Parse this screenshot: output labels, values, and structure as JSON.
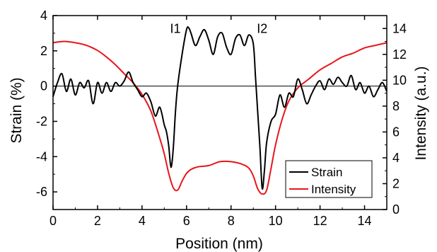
{
  "chart_data": {
    "type": "line",
    "title": "",
    "xlabel": "Position (nm)",
    "ylabel_left": "Strain (%)",
    "ylabel_right": "Intensity (a.u.)",
    "xlim": [
      0,
      15
    ],
    "ylim_left": [
      -7,
      4
    ],
    "ylim_right": [
      0,
      15
    ],
    "xticks": [
      "0",
      "2",
      "4",
      "6",
      "8",
      "10",
      "12",
      "14"
    ],
    "yticks_left": [
      "-6",
      "-4",
      "-2",
      "0",
      "2",
      "4"
    ],
    "yticks_right": [
      "0",
      "2",
      "4",
      "6",
      "8",
      "10",
      "12",
      "14"
    ],
    "zero_line": 0,
    "grid": false,
    "legend_position": "bottom-right",
    "annotations": [
      {
        "text": "I1",
        "x": 5.5,
        "y": 14.0
      },
      {
        "text": "I2",
        "x": 9.4,
        "y": 14.0
      }
    ],
    "series": [
      {
        "name": "Strain",
        "axis": "left",
        "color": "#000000",
        "x": [
          0.0,
          0.2,
          0.4,
          0.6,
          0.8,
          1.0,
          1.2,
          1.4,
          1.6,
          1.8,
          2.0,
          2.2,
          2.4,
          2.6,
          2.8,
          3.0,
          3.2,
          3.4,
          3.6,
          3.8,
          4.0,
          4.2,
          4.4,
          4.6,
          4.8,
          5.0,
          5.1,
          5.2,
          5.3,
          5.4,
          5.5,
          5.6,
          5.8,
          6.0,
          6.1,
          6.2,
          6.4,
          6.6,
          6.8,
          7.0,
          7.2,
          7.4,
          7.6,
          7.8,
          8.0,
          8.2,
          8.4,
          8.6,
          8.8,
          9.0,
          9.1,
          9.2,
          9.3,
          9.4,
          9.5,
          9.6,
          9.8,
          10.0,
          10.2,
          10.4,
          10.6,
          10.8,
          11.0,
          11.2,
          11.4,
          11.6,
          11.8,
          12.0,
          12.2,
          12.4,
          12.6,
          12.8,
          13.0,
          13.2,
          13.4,
          13.6,
          13.8,
          14.0,
          14.2,
          14.4,
          14.6,
          14.8,
          15.0
        ],
        "y": [
          -0.6,
          0.2,
          0.7,
          -0.3,
          0.4,
          -0.5,
          0.2,
          -0.1,
          0.3,
          -1.0,
          0.2,
          -0.4,
          0.2,
          -0.3,
          0.2,
          0.0,
          0.3,
          0.8,
          0.2,
          -0.2,
          -0.6,
          -0.4,
          -0.9,
          -1.7,
          -1.2,
          -2.2,
          -2.6,
          -3.4,
          -4.6,
          -3.6,
          -1.5,
          0.0,
          1.8,
          3.2,
          3.3,
          3.0,
          2.3,
          2.8,
          3.2,
          2.6,
          1.8,
          2.8,
          3.0,
          2.2,
          1.8,
          2.7,
          2.9,
          2.3,
          2.9,
          2.4,
          0.5,
          -1.5,
          -3.5,
          -5.8,
          -4.8,
          -3.2,
          -2.0,
          -1.6,
          -0.5,
          -1.2,
          -0.4,
          -0.6,
          0.4,
          -0.2,
          -1.0,
          -0.5,
          0.0,
          0.3,
          -0.2,
          0.4,
          0.1,
          0.5,
          0.2,
          0.0,
          0.6,
          -0.2,
          0.2,
          -0.4,
          0.0,
          -0.6,
          -0.2,
          0.2,
          -0.3
        ]
      },
      {
        "name": "Intensity",
        "axis": "right",
        "color": "#e8151b",
        "x": [
          0.0,
          0.5,
          1.0,
          1.5,
          2.0,
          2.4,
          2.8,
          3.2,
          3.6,
          4.0,
          4.4,
          4.8,
          5.0,
          5.2,
          5.4,
          5.6,
          5.8,
          6.0,
          6.2,
          6.5,
          7.0,
          7.5,
          8.0,
          8.5,
          8.8,
          9.0,
          9.2,
          9.4,
          9.6,
          9.8,
          10.0,
          10.3,
          10.6,
          11.0,
          11.5,
          12.0,
          12.5,
          13.0,
          13.5,
          14.0,
          14.5,
          15.0
        ],
        "y": [
          12.9,
          13.0,
          12.9,
          12.7,
          12.3,
          11.8,
          11.2,
          10.5,
          9.8,
          8.9,
          7.6,
          5.5,
          4.3,
          2.8,
          1.7,
          1.5,
          2.2,
          2.8,
          3.1,
          3.3,
          3.4,
          3.7,
          3.7,
          3.5,
          3.2,
          2.6,
          1.6,
          1.2,
          1.5,
          3.2,
          5.0,
          7.0,
          8.4,
          9.4,
          10.1,
          10.8,
          11.3,
          11.8,
          12.1,
          12.5,
          12.7,
          12.9
        ]
      }
    ]
  }
}
